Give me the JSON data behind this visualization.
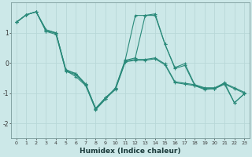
{
  "xlabel": "Humidex (Indice chaleur)",
  "background_color": "#cce8e8",
  "grid_color": "#b8d8d8",
  "line_color": "#2a8a7a",
  "xlim": [
    -0.5,
    23.5
  ],
  "ylim": [
    -2.5,
    2.0
  ],
  "yticks": [
    -2,
    -1,
    0,
    1
  ],
  "xticks": [
    0,
    1,
    2,
    3,
    4,
    5,
    6,
    7,
    8,
    9,
    10,
    11,
    12,
    13,
    14,
    15,
    16,
    17,
    18,
    19,
    20,
    21,
    22,
    23
  ],
  "series1_x": [
    0,
    1,
    2,
    3,
    4,
    5,
    6,
    7,
    8,
    9,
    10,
    11,
    12,
    13,
    14,
    15,
    16,
    17,
    18,
    19,
    20,
    21,
    22,
    23
  ],
  "series1_y": [
    1.35,
    1.6,
    1.7,
    1.1,
    1.0,
    -0.25,
    -0.35,
    -0.7,
    -1.5,
    -1.15,
    -0.85,
    0.07,
    0.12,
    0.12,
    0.17,
    -0.03,
    -0.62,
    -0.67,
    -0.72,
    -0.82,
    -0.82,
    -0.67,
    -0.82,
    -0.97
  ],
  "series2_x": [
    0,
    1,
    2,
    3,
    4,
    5,
    6,
    7,
    8,
    9,
    10,
    11,
    12,
    13,
    14,
    15,
    16,
    17,
    18,
    19,
    20,
    21,
    22,
    23
  ],
  "series2_y": [
    1.35,
    1.6,
    1.7,
    1.05,
    0.95,
    -0.28,
    -0.38,
    -0.73,
    -1.52,
    -1.18,
    -0.88,
    0.04,
    0.09,
    0.09,
    0.14,
    -0.06,
    -0.65,
    -0.7,
    -0.75,
    -0.85,
    -0.85,
    -0.7,
    -0.85,
    -1.0
  ],
  "series3_x": [
    0,
    1,
    2,
    3,
    4,
    5,
    6,
    7,
    8,
    9,
    10,
    11,
    12,
    13,
    14,
    15,
    16,
    17,
    18,
    19,
    20,
    21,
    22,
    23
  ],
  "series3_y": [
    1.35,
    1.6,
    1.7,
    1.1,
    1.0,
    -0.25,
    -0.45,
    -0.75,
    -1.55,
    -1.2,
    -0.82,
    0.12,
    1.58,
    1.58,
    1.63,
    0.62,
    -0.18,
    -0.08,
    -0.75,
    -0.88,
    -0.85,
    -0.65,
    -1.32,
    -1.02
  ],
  "series4_x": [
    0,
    1,
    2,
    3,
    4,
    5,
    6,
    7,
    8,
    9,
    10,
    11,
    12,
    13,
    14,
    15,
    16,
    17,
    18,
    19,
    20,
    21,
    22,
    23
  ],
  "series4_y": [
    1.35,
    1.6,
    1.7,
    1.05,
    1.0,
    -0.22,
    -0.35,
    -0.7,
    -1.52,
    -1.15,
    -0.85,
    0.09,
    0.17,
    1.58,
    1.58,
    0.62,
    -0.15,
    -0.02,
    -0.72,
    -0.85,
    -0.85,
    -0.7,
    -1.32,
    -1.02
  ]
}
